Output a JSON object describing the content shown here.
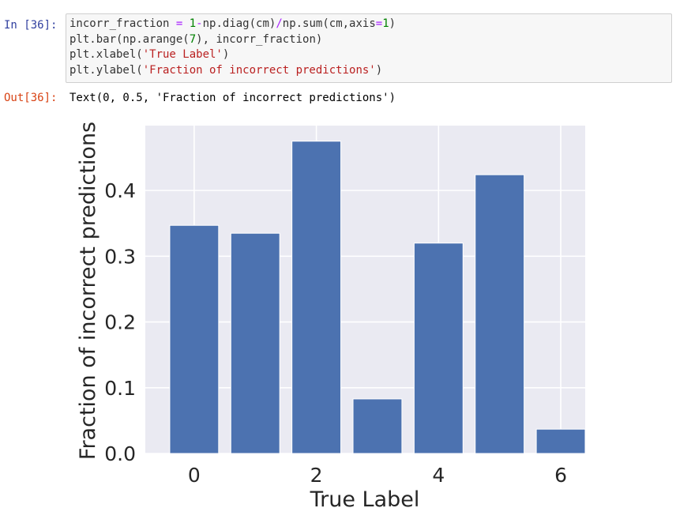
{
  "cell_in": {
    "prompt": "In [36]:",
    "code": [
      {
        "parts": [
          {
            "t": "incorr_fraction "
          },
          {
            "t": "=",
            "c": "op"
          },
          {
            "t": " "
          },
          {
            "t": "1",
            "c": "num"
          },
          {
            "t": "-",
            "c": "op"
          },
          {
            "t": "np.diag(cm)"
          },
          {
            "t": "/",
            "c": "op"
          },
          {
            "t": "np.sum(cm,axis"
          },
          {
            "t": "=",
            "c": "op"
          },
          {
            "t": "1",
            "c": "num"
          },
          {
            "t": ")"
          }
        ]
      },
      {
        "parts": [
          {
            "t": "plt.bar(np.arange("
          },
          {
            "t": "7",
            "c": "num"
          },
          {
            "t": "), incorr_fraction)"
          }
        ]
      },
      {
        "parts": [
          {
            "t": "plt.xlabel("
          },
          {
            "t": "'True Label'",
            "c": "str"
          },
          {
            "t": ")"
          }
        ]
      },
      {
        "parts": [
          {
            "t": "plt.ylabel("
          },
          {
            "t": "'Fraction of incorrect predictions'",
            "c": "str"
          },
          {
            "t": ")"
          }
        ]
      }
    ]
  },
  "cell_out": {
    "prompt": "Out[36]:",
    "text": "Text(0, 0.5, 'Fraction of incorrect predictions')"
  },
  "chart_data": {
    "type": "bar",
    "x": [
      0,
      1,
      2,
      3,
      4,
      5,
      6
    ],
    "values": [
      0.347,
      0.335,
      0.475,
      0.083,
      0.32,
      0.424,
      0.037
    ],
    "xticks": [
      0,
      2,
      4,
      6
    ],
    "xtick_labels": [
      "0",
      "2",
      "4",
      "6"
    ],
    "yticks": [
      0.0,
      0.1,
      0.2,
      0.3,
      0.4
    ],
    "ytick_labels": [
      "0.0",
      "0.1",
      "0.2",
      "0.3",
      "0.4"
    ],
    "xlabel": "True Label",
    "ylabel": "Fraction of incorrect predictions",
    "ylim": [
      0,
      0.4987
    ],
    "xlim": [
      -0.8,
      6.4
    ],
    "grid": true,
    "style": "seaborn",
    "bar_color": "#4c72b0",
    "background_color": "#eaeaf2"
  }
}
